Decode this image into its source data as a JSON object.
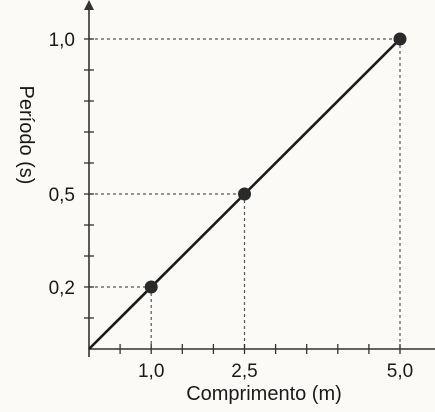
{
  "chart_data": {
    "type": "line",
    "xlabel": "Comprimento (m)",
    "ylabel": "Período (s)",
    "xlim": [
      0,
      5.6
    ],
    "ylim": [
      0,
      1.1
    ],
    "x_tick_labels": [
      {
        "value": 1.0,
        "label": "1,0"
      },
      {
        "value": 2.5,
        "label": "2,5"
      },
      {
        "value": 5.0,
        "label": "5,0"
      }
    ],
    "y_tick_labels": [
      {
        "value": 0.2,
        "label": "0,2"
      },
      {
        "value": 0.5,
        "label": "0,5"
      },
      {
        "value": 1.0,
        "label": "1,0"
      }
    ],
    "x_minor_ticks": [
      0.5,
      1.5,
      2.0,
      3.0,
      3.5,
      4.0,
      4.5
    ],
    "y_minor_ticks": [
      0.1,
      0.3,
      0.4,
      0.6,
      0.7,
      0.8,
      0.9
    ],
    "line": {
      "x": [
        0,
        5.0
      ],
      "y": [
        0,
        1.0
      ]
    },
    "points": [
      {
        "x": 1.0,
        "y": 0.2
      },
      {
        "x": 2.5,
        "y": 0.5
      },
      {
        "x": 5.0,
        "y": 1.0
      }
    ],
    "grid": false,
    "guide_lines": "dashed",
    "colors": {
      "line": "#1a1a1a",
      "marker": "#2a2a2a",
      "guide": "#555555",
      "axis": "#333333",
      "background": "#fbfaf7"
    }
  }
}
